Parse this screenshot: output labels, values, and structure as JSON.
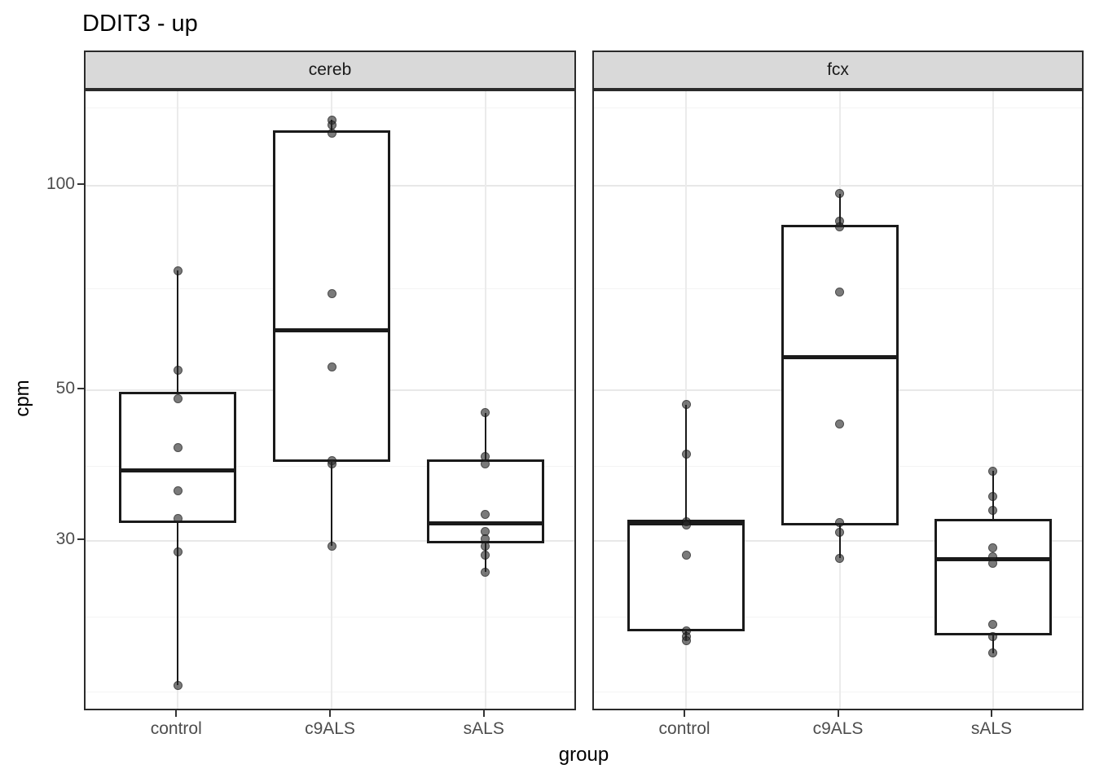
{
  "chart_data": {
    "type": "boxplot",
    "title": "DDIT3 - up",
    "ylabel": "cpm",
    "xlabel": "group",
    "x_categories": [
      "control",
      "c9ALS",
      "sALS"
    ],
    "y_axis": {
      "scale": "log10",
      "ticks": [
        {
          "value": 100,
          "label": "100"
        },
        {
          "value": 50,
          "label": "50"
        },
        {
          "value": 30,
          "label": "30"
        }
      ],
      "minor_gridlines": [
        18,
        23.2,
        38.7,
        70.7,
        130.4
      ],
      "domain": [
        16.9,
        138
      ],
      "grid": true
    },
    "facets": [
      {
        "label": "cereb",
        "groups": [
          {
            "label": "control",
            "q1": 31.9,
            "median": 38.1,
            "q3": 49.7,
            "whisker_low": 18.4,
            "whisker_high": 75,
            "points": [
              75,
              53.5,
              48.6,
              41.2,
              35.6,
              32.4,
              28.9,
              18.4
            ]
          },
          {
            "label": "c9ALS",
            "q1": 39.2,
            "median": 61.3,
            "q3": 120.5,
            "whisker_low": 29.5,
            "whisker_high": 125,
            "points": [
              125,
              122.7,
              119.5,
              69.4,
              54.1,
              39.4,
              38.9,
              29.5
            ]
          },
          {
            "label": "sALS",
            "q1": 29.8,
            "median": 31.8,
            "q3": 39.5,
            "whisker_low": 27,
            "whisker_high": 46.3,
            "points": [
              46.3,
              39.9,
              38.9,
              32.8,
              31,
              30.2,
              29.5,
              28.6,
              27
            ]
          }
        ]
      },
      {
        "label": "fcx",
        "groups": [
          {
            "label": "control",
            "q1": 22.1,
            "median": 31.8,
            "q3": 32.2,
            "whisker_low": 21.4,
            "whisker_high": 47.6,
            "points": [
              47.6,
              40.3,
              32,
              31.7,
              28.6,
              22.1,
              21.7,
              21.4
            ]
          },
          {
            "label": "c9ALS",
            "q1": 31.6,
            "median": 55.9,
            "q3": 87.7,
            "whisker_low": 28.3,
            "whisker_high": 97.3,
            "points": [
              97.3,
              88.6,
              86.9,
              69.7,
              44.6,
              31.9,
              30.9,
              28.3
            ]
          },
          {
            "label": "sALS",
            "q1": 21.8,
            "median": 28.2,
            "q3": 32.3,
            "whisker_low": 20.5,
            "whisker_high": 38,
            "points": [
              38,
              34.9,
              33.3,
              29.3,
              28.4,
              27.8,
              22.6,
              21.7,
              20.5
            ]
          }
        ]
      }
    ],
    "colors": {
      "strip_bg": "#d9d9d9",
      "panel_border": "#2b2b2b",
      "box_stroke": "#1a1a1a",
      "point": "#282828",
      "grid_major": "#e8e8e8",
      "grid_minor": "#f4f4f4",
      "axis_text": "#4d4d4d",
      "title_text": "#000000",
      "background": "#ffffff"
    }
  }
}
